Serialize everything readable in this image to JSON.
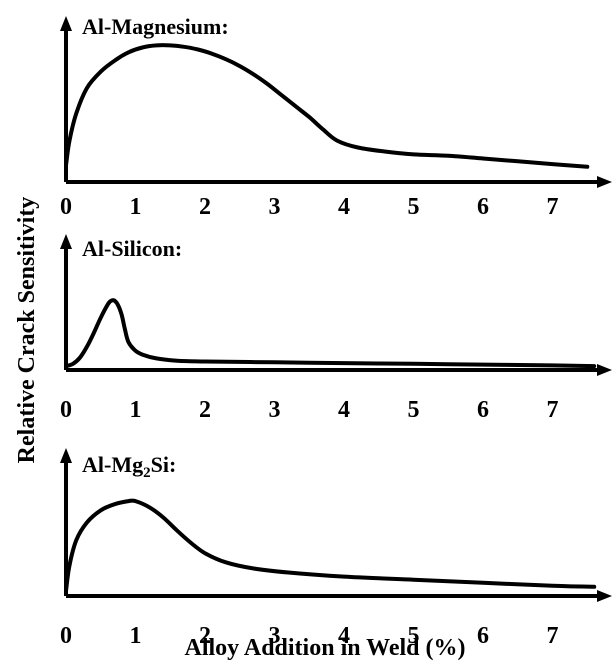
{
  "chart_data": {
    "type": "line",
    "ylabel": "Relative Crack Sensitivity",
    "xlabel": "Alloy Addition in Weld (%)",
    "panels": [
      {
        "title_prefix": "Al-Magnesium:",
        "title_sub": "",
        "title_suffix": "",
        "x_ticks": [
          "0",
          "1",
          "2",
          "3",
          "4",
          "5",
          "6",
          "7"
        ],
        "xlim": [
          0,
          7.6
        ],
        "ylim": [
          0,
          1
        ],
        "x": [
          0.0,
          0.05,
          0.15,
          0.3,
          0.5,
          0.7,
          0.9,
          1.1,
          1.3,
          1.5,
          1.7,
          1.9,
          2.1,
          2.3,
          2.5,
          2.7,
          2.9,
          3.1,
          3.3,
          3.5,
          3.7,
          3.9,
          4.2,
          4.6,
          5.0,
          5.5,
          6.0,
          6.5,
          7.0,
          7.5
        ],
        "y": [
          0.12,
          0.3,
          0.5,
          0.68,
          0.8,
          0.88,
          0.94,
          0.975,
          0.99,
          0.99,
          0.98,
          0.96,
          0.93,
          0.89,
          0.84,
          0.78,
          0.71,
          0.63,
          0.55,
          0.47,
          0.38,
          0.3,
          0.25,
          0.22,
          0.2,
          0.19,
          0.17,
          0.15,
          0.13,
          0.11
        ]
      },
      {
        "title_prefix": "Al-Silicon:",
        "title_sub": "",
        "title_suffix": "",
        "x_ticks": [
          "0",
          "1",
          "2",
          "3",
          "4",
          "5",
          "6",
          "7"
        ],
        "xlim": [
          0,
          7.6
        ],
        "ylim": [
          0,
          1
        ],
        "x": [
          0.0,
          0.1,
          0.2,
          0.3,
          0.4,
          0.5,
          0.6,
          0.65,
          0.7,
          0.75,
          0.8,
          0.85,
          0.9,
          1.0,
          1.1,
          1.3,
          1.6,
          2.0,
          3.0,
          4.0,
          5.0,
          6.0,
          7.0,
          7.6
        ],
        "y": [
          0.05,
          0.08,
          0.16,
          0.3,
          0.48,
          0.68,
          0.85,
          0.9,
          0.9,
          0.84,
          0.72,
          0.52,
          0.36,
          0.25,
          0.2,
          0.15,
          0.12,
          0.11,
          0.1,
          0.09,
          0.08,
          0.07,
          0.06,
          0.05
        ]
      },
      {
        "title_prefix": "Al-Mg",
        "title_sub": "2",
        "title_suffix": "Si:",
        "x_ticks": [
          "0",
          "1",
          "2",
          "3",
          "4",
          "5",
          "6",
          "7"
        ],
        "xlim": [
          0,
          7.6
        ],
        "ylim": [
          0,
          1
        ],
        "x": [
          0.0,
          0.05,
          0.15,
          0.3,
          0.5,
          0.7,
          0.9,
          1.0,
          1.2,
          1.4,
          1.6,
          1.8,
          2.0,
          2.3,
          2.7,
          3.2,
          4.0,
          5.0,
          6.0,
          7.0,
          7.6
        ],
        "y": [
          0.05,
          0.3,
          0.55,
          0.72,
          0.84,
          0.9,
          0.93,
          0.93,
          0.87,
          0.77,
          0.64,
          0.52,
          0.42,
          0.33,
          0.27,
          0.23,
          0.19,
          0.16,
          0.13,
          0.1,
          0.09
        ]
      }
    ]
  }
}
